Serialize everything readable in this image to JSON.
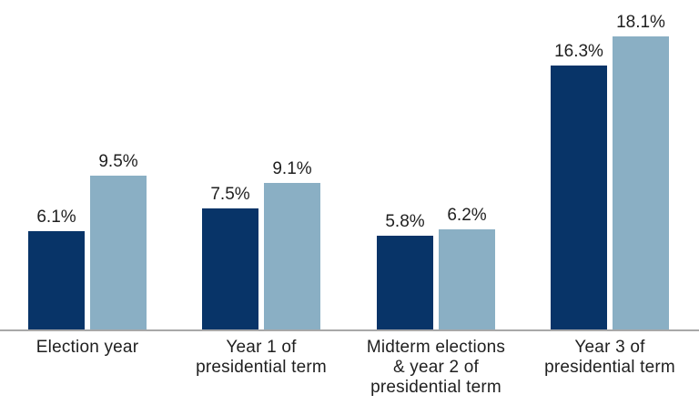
{
  "chart_data": {
    "type": "bar",
    "title": "",
    "xlabel": "",
    "ylabel": "",
    "categories": [
      {
        "lines": [
          "Election year"
        ]
      },
      {
        "lines": [
          "Year 1 of",
          "presidential term"
        ]
      },
      {
        "lines": [
          "Midterm elections",
          "& year 2 of",
          "presidential term"
        ]
      },
      {
        "lines": [
          "Year 3 of",
          "presidential term"
        ]
      }
    ],
    "series": [
      {
        "name": "dark-blue-series",
        "color": "#083468",
        "values": [
          6.1,
          7.5,
          5.8,
          16.3
        ],
        "labels": [
          "6.1%",
          "7.5%",
          "5.8%",
          "16.3%"
        ]
      },
      {
        "name": "light-blue-series",
        "color": "#8aafc4",
        "values": [
          9.5,
          9.1,
          6.2,
          18.1
        ],
        "labels": [
          "9.5%",
          "9.1%",
          "6.2%",
          "18.1%"
        ]
      }
    ],
    "ylim": [
      0,
      20.3
    ],
    "grid": false,
    "legend": "none",
    "value_label_format": "percent",
    "axis_line_color": "#a8a8a8",
    "text_color": "#1f1f1f",
    "background": "#ffffff"
  }
}
